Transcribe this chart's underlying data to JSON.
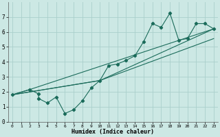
{
  "title": "",
  "xlabel": "Humidex (Indice chaleur)",
  "bg_color": "#cce8e4",
  "grid_color": "#aacfcb",
  "line_color": "#1a6b5a",
  "xlim": [
    -0.5,
    23.5
  ],
  "ylim": [
    0,
    8
  ],
  "xticks": [
    0,
    1,
    2,
    3,
    4,
    5,
    6,
    7,
    8,
    9,
    10,
    11,
    12,
    13,
    14,
    15,
    16,
    17,
    18,
    19,
    20,
    21,
    22,
    23
  ],
  "yticks": [
    0,
    1,
    2,
    3,
    4,
    5,
    6,
    7
  ],
  "line1_x": [
    0,
    2,
    3,
    3,
    4,
    5,
    6,
    7,
    8,
    9,
    10,
    11,
    12,
    13,
    14,
    15,
    16,
    17,
    18,
    19,
    20,
    21,
    22,
    23
  ],
  "line1_y": [
    1.8,
    2.15,
    1.85,
    1.55,
    1.25,
    1.65,
    0.55,
    0.8,
    1.4,
    2.25,
    2.75,
    3.75,
    3.85,
    4.1,
    4.4,
    5.35,
    6.55,
    6.3,
    7.25,
    5.45,
    5.55,
    6.55,
    6.55,
    6.2
  ],
  "line2_x": [
    0,
    2,
    23
  ],
  "line2_y": [
    1.8,
    2.15,
    6.2
  ],
  "line3_x": [
    0,
    10,
    23
  ],
  "line3_y": [
    1.8,
    2.75,
    6.2
  ],
  "line4_x": [
    0,
    10,
    23
  ],
  "line4_y": [
    1.8,
    2.75,
    5.55
  ]
}
